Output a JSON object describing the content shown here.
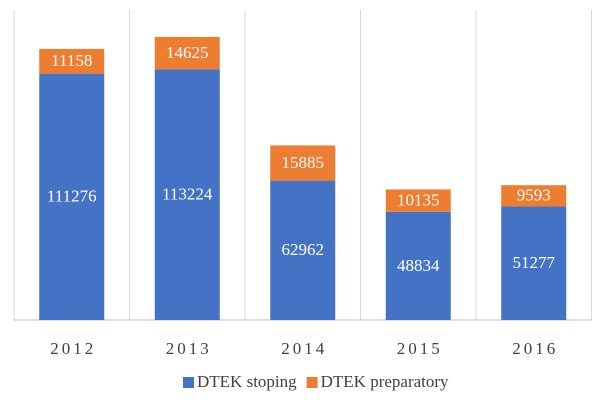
{
  "chart_data": {
    "type": "stacked_bar",
    "categories": [
      "2012",
      "2013",
      "2014",
      "2015",
      "2016"
    ],
    "series": [
      {
        "name": "DTEK stoping",
        "color": "#4472c4",
        "values": [
          111276,
          113224,
          62962,
          48834,
          51277
        ]
      },
      {
        "name": "DTEK preparatory",
        "color": "#ed7d31",
        "values": [
          11158,
          14625,
          15885,
          10135,
          9593
        ]
      }
    ],
    "ylim": [
      0,
      140000
    ],
    "legend": "bottom"
  }
}
